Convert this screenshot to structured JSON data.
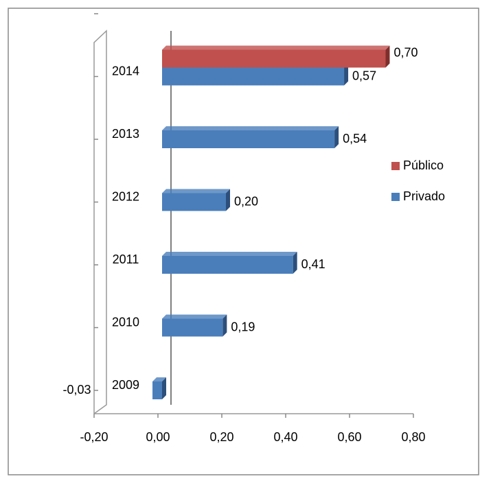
{
  "chart_data": {
    "type": "bar",
    "orientation": "horizontal",
    "categories": [
      "2009",
      "2010",
      "2011",
      "2012",
      "2013",
      "2014"
    ],
    "series": [
      {
        "name": "Privado",
        "color": "#4a7ebb",
        "values": [
          -0.03,
          0.19,
          0.41,
          0.2,
          0.54,
          0.57
        ],
        "value_labels": [
          "-0,03",
          "0,19",
          "0,41",
          "0,20",
          "0,54",
          "0,57"
        ]
      },
      {
        "name": "Público",
        "color": "#c0504d",
        "values": [
          null,
          null,
          null,
          null,
          null,
          0.7
        ],
        "value_labels": [
          null,
          null,
          null,
          null,
          null,
          "0,70"
        ]
      }
    ],
    "xlim": [
      -0.2,
      0.8
    ],
    "xticks": [
      {
        "value": -0.2,
        "label": "-0,20"
      },
      {
        "value": 0,
        "label": "0,00"
      },
      {
        "value": 0.2,
        "label": "0,20"
      },
      {
        "value": 0.4,
        "label": "0,40"
      },
      {
        "value": 0.6,
        "label": "0,60"
      },
      {
        "value": 0.8,
        "label": "0,80"
      }
    ],
    "legend": "right"
  }
}
